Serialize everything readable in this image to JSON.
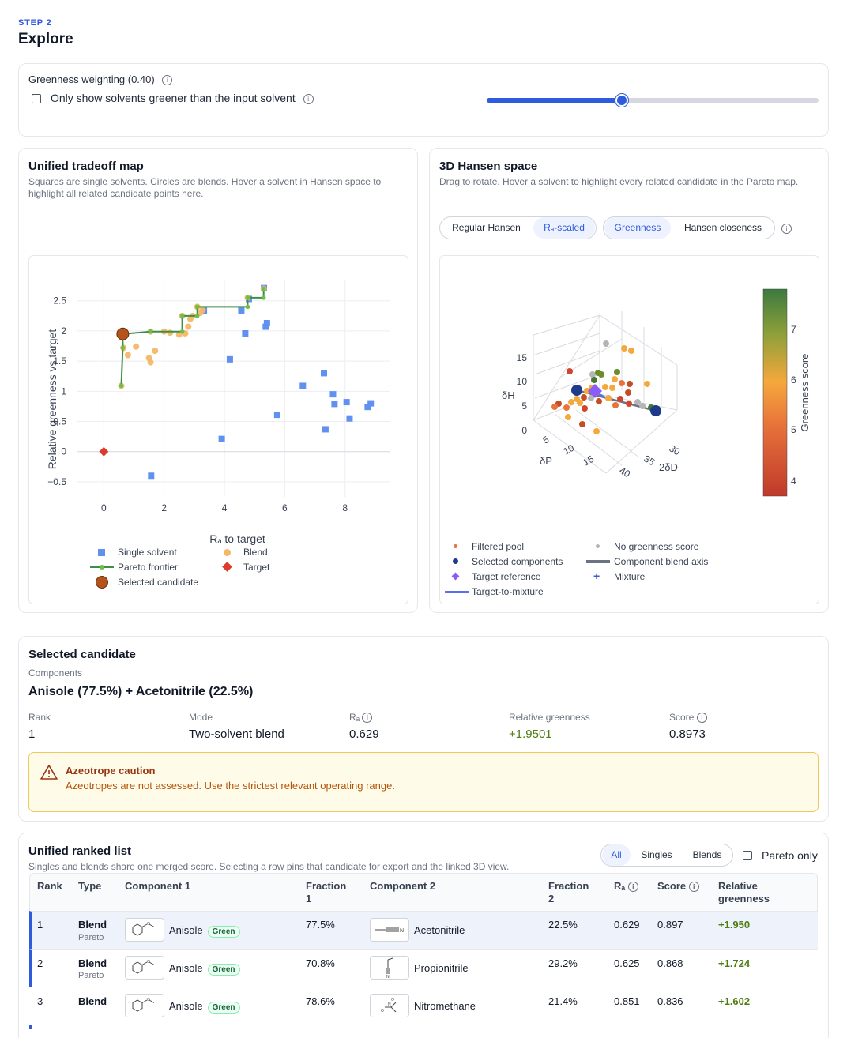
{
  "header": {
    "step": "STEP 2",
    "title": "Explore"
  },
  "controls": {
    "weighting_label": "Greenness weighting (0.40)",
    "greener_label": "Only show solvents greener than the input solvent",
    "slider_value": 0.4
  },
  "tradeoff": {
    "title": "Unified tradeoff map",
    "subtitle": "Squares are single solvents. Circles are blends. Hover a solvent in Hansen space to highlight all related candidate points here.",
    "legend": {
      "single": "Single solvent",
      "pareto": "Pareto frontier",
      "selected": "Selected candidate",
      "blend": "Blend",
      "target": "Target"
    }
  },
  "hansen": {
    "title": "3D Hansen space",
    "subtitle": "Drag to rotate. Hover a solvent to highlight every related candidate in the Pareto map.",
    "toggle1": [
      "Regular Hansen",
      "Rₐ-scaled"
    ],
    "toggle2": [
      "Greenness",
      "Hansen closeness"
    ],
    "axes": {
      "z": "δH",
      "x": "δP",
      "y": "2δD",
      "colorbar": "Greenness score"
    },
    "z_ticks": [
      "0",
      "5",
      "10",
      "15"
    ],
    "x_ticks": [
      "5",
      "10",
      "15"
    ],
    "y_ticks": [
      "30",
      "35",
      "40"
    ],
    "cbar_ticks": [
      "7",
      "6",
      "5",
      "4"
    ],
    "legend": {
      "filtered": "Filtered pool",
      "selected": "Selected components",
      "target": "Target reference",
      "t2m": "Target-to-mixture",
      "nogreen": "No greenness score",
      "axis": "Component blend axis",
      "mixture": "Mixture"
    }
  },
  "chart_data": {
    "type": "scatter",
    "title": "",
    "xlabel": "Rₐ to target",
    "ylabel": "Relative greenness vs target",
    "xlim": [
      -0.9,
      9.5
    ],
    "ylim": [
      -0.75,
      2.85
    ],
    "xticks": [
      0,
      2,
      4,
      6,
      8
    ],
    "yticks": [
      2.5,
      2,
      1.5,
      1,
      0.5,
      0,
      -0.5
    ],
    "ytick_labels": [
      "2.5",
      "2",
      "1.5",
      "1",
      "0.5",
      "0",
      "−0.5"
    ],
    "grid": true,
    "legend_placement": "bottom",
    "series": [
      {
        "name": "Single solvent",
        "marker": "square",
        "color": "#6090f0",
        "points": [
          [
            1.57,
            -0.4
          ],
          [
            3.91,
            0.21
          ],
          [
            4.18,
            1.53
          ],
          [
            4.56,
            2.34
          ],
          [
            4.69,
            1.96
          ],
          [
            4.81,
            2.53
          ],
          [
            5.31,
            2.71
          ],
          [
            5.37,
            2.07
          ],
          [
            5.41,
            2.13
          ],
          [
            5.75,
            0.61
          ],
          [
            6.6,
            1.09
          ],
          [
            7.3,
            1.3
          ],
          [
            7.35,
            0.37
          ],
          [
            7.6,
            0.95
          ],
          [
            7.65,
            0.79
          ],
          [
            8.05,
            0.82
          ],
          [
            8.15,
            0.55
          ],
          [
            8.75,
            0.74
          ],
          [
            8.85,
            0.8
          ],
          [
            3.32,
            2.34
          ]
        ]
      },
      {
        "name": "Blend",
        "marker": "circle",
        "color": "#f5b766",
        "points": [
          [
            0.58,
            1.09
          ],
          [
            0.63,
            1.95
          ],
          [
            0.65,
            1.72
          ],
          [
            0.8,
            1.6
          ],
          [
            1.07,
            1.74
          ],
          [
            1.5,
            1.55
          ],
          [
            1.55,
            1.48
          ],
          [
            1.7,
            1.67
          ],
          [
            2.0,
            1.99
          ],
          [
            2.2,
            1.97
          ],
          [
            2.5,
            1.94
          ],
          [
            2.7,
            1.96
          ],
          [
            2.8,
            2.07
          ],
          [
            2.87,
            2.2
          ],
          [
            2.95,
            2.25
          ],
          [
            3.1,
            2.4
          ],
          [
            3.2,
            2.3
          ],
          [
            3.28,
            2.35
          ],
          [
            4.77,
            2.55
          ],
          [
            5.3,
            2.7
          ],
          [
            1.55,
            1.99
          ],
          [
            2.6,
            2.25
          ]
        ]
      },
      {
        "name": "Pareto frontier",
        "line": true,
        "color": "#3e8e4a",
        "points": [
          [
            0.58,
            1.09
          ],
          [
            0.63,
            1.72
          ],
          [
            0.63,
            1.95
          ],
          [
            1.55,
            1.99
          ],
          [
            2.6,
            1.99
          ],
          [
            2.6,
            2.25
          ],
          [
            3.1,
            2.25
          ],
          [
            3.1,
            2.4
          ],
          [
            4.77,
            2.4
          ],
          [
            4.77,
            2.55
          ],
          [
            5.3,
            2.55
          ],
          [
            5.3,
            2.7
          ]
        ]
      },
      {
        "name": "Selected candidate",
        "marker": "circle",
        "color": "#b4541c",
        "points": [
          [
            0.629,
            1.9501
          ]
        ]
      },
      {
        "name": "Target",
        "marker": "diamond",
        "color": "#dd3b2e",
        "points": [
          [
            0,
            0
          ]
        ]
      }
    ]
  },
  "selected": {
    "title": "Selected candidate",
    "components_label": "Components",
    "components": "Anisole (77.5%) + Acetonitrile (22.5%)",
    "rank_label": "Rank",
    "rank": "1",
    "mode_label": "Mode",
    "mode": "Two-solvent blend",
    "ra_label": "Rₐ",
    "ra": "0.629",
    "green_label": "Relative greenness",
    "green": "+1.9501",
    "score_label": "Score",
    "score": "0.8973",
    "warn_title": "Azeotrope caution",
    "warn_text": "Azeotropes are not assessed. Use the strictest relevant operating range."
  },
  "ranked": {
    "title": "Unified ranked list",
    "subtitle": "Singles and blends share one merged score. Selecting a row pins that candidate for export and the linked 3D view.",
    "filters": [
      "All",
      "Singles",
      "Blends"
    ],
    "pareto_only": "Pareto only",
    "headers": {
      "rank": "Rank",
      "type": "Type",
      "c1": "Component 1",
      "f1a": "Fraction",
      "f1b": "1",
      "c2": "Component 2",
      "f2a": "Fraction",
      "f2b": "2",
      "ra": "Rₐ",
      "score": "Score",
      "rg1": "Relative",
      "rg2": "greenness"
    },
    "rows": [
      {
        "rank": "1",
        "type": "Blend",
        "sub": "Pareto",
        "c1": "Anisole",
        "badge": "Green",
        "f1": "77.5%",
        "c2": "Acetonitrile",
        "f2": "22.5%",
        "ra": "0.629",
        "score": "0.897",
        "rg": "+1.950"
      },
      {
        "rank": "2",
        "type": "Blend",
        "sub": "Pareto",
        "c1": "Anisole",
        "badge": "Green",
        "f1": "70.8%",
        "c2": "Propionitrile",
        "f2": "29.2%",
        "ra": "0.625",
        "score": "0.868",
        "rg": "+1.724"
      },
      {
        "rank": "3",
        "type": "Blend",
        "sub": "",
        "c1": "Anisole",
        "badge": "Green",
        "f1": "78.6%",
        "c2": "Nitromethane",
        "f2": "21.4%",
        "ra": "0.851",
        "score": "0.836",
        "rg": "+1.602"
      }
    ]
  }
}
